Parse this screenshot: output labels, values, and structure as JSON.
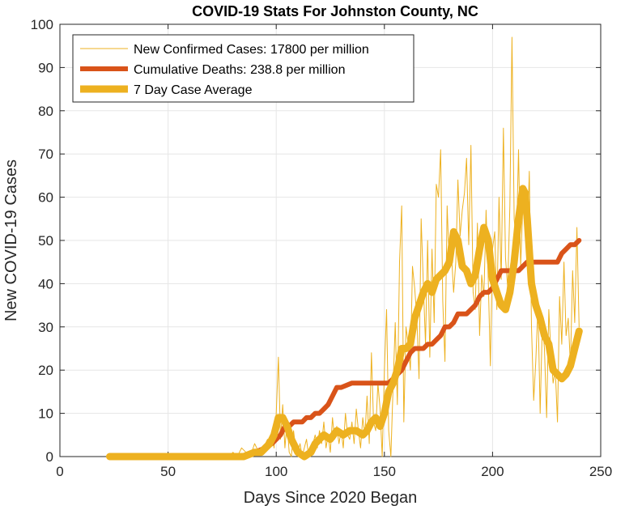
{
  "chart_data": {
    "type": "line",
    "title": "COVID-19 Stats For Johnston County, NC",
    "xlabel": "Days Since 2020 Began",
    "ylabel": "New COVID-19 Cases",
    "xlim": [
      0,
      250
    ],
    "ylim": [
      0,
      100
    ],
    "xticks": [
      0,
      50,
      100,
      150,
      200,
      250
    ],
    "yticks": [
      0,
      10,
      20,
      30,
      40,
      50,
      60,
      70,
      80,
      90,
      100
    ],
    "xtick_labels": [
      "0",
      "50",
      "100",
      "150",
      "200",
      "250"
    ],
    "ytick_labels": [
      "0",
      "10",
      "20",
      "30",
      "40",
      "50",
      "60",
      "70",
      "80",
      "90",
      "100"
    ],
    "grid": true,
    "legend_position": "top-left",
    "series": [
      {
        "name": "New Confirmed Cases: 17800 per million",
        "color": "#EDB120",
        "style": "thin",
        "x": [
          23,
          30,
          40,
          50,
          60,
          70,
          78,
          80,
          82,
          84,
          86,
          88,
          90,
          92,
          94,
          96,
          97,
          98,
          99,
          100,
          101,
          102,
          103,
          104,
          105,
          106,
          107,
          108,
          109,
          110,
          111,
          112,
          113,
          114,
          115,
          116,
          117,
          118,
          119,
          120,
          121,
          122,
          123,
          124,
          125,
          126,
          127,
          128,
          129,
          130,
          131,
          132,
          133,
          134,
          135,
          136,
          137,
          138,
          139,
          140,
          141,
          142,
          143,
          144,
          145,
          146,
          147,
          148,
          149,
          150,
          151,
          152,
          153,
          154,
          155,
          156,
          157,
          158,
          159,
          160,
          161,
          162,
          163,
          164,
          165,
          166,
          167,
          168,
          169,
          170,
          171,
          172,
          173,
          174,
          175,
          176,
          177,
          178,
          179,
          180,
          181,
          182,
          183,
          184,
          185,
          186,
          187,
          188,
          189,
          190,
          191,
          192,
          193,
          194,
          195,
          196,
          197,
          198,
          199,
          200,
          201,
          202,
          203,
          204,
          205,
          206,
          207,
          208,
          209,
          210,
          211,
          212,
          213,
          214,
          215,
          216,
          217,
          218,
          219,
          220,
          221,
          222,
          223,
          224,
          225,
          226,
          227,
          228,
          229,
          230,
          231,
          232,
          233,
          234,
          235,
          236,
          237,
          238,
          239,
          240
        ],
        "y": [
          0,
          0,
          0,
          0,
          0,
          0,
          0,
          1,
          0,
          2,
          1,
          0,
          3,
          1,
          2,
          4,
          3,
          6,
          2,
          10,
          23,
          4,
          12,
          2,
          8,
          1,
          0,
          6,
          2,
          1,
          3,
          0,
          2,
          4,
          0,
          1,
          3,
          5,
          2,
          6,
          3,
          8,
          2,
          5,
          1,
          9,
          4,
          7,
          3,
          6,
          2,
          10,
          5,
          4,
          8,
          3,
          11,
          6,
          2,
          9,
          5,
          14,
          3,
          24,
          8,
          6,
          17,
          11,
          0,
          20,
          34,
          6,
          0,
          16,
          31,
          12,
          45,
          58,
          8,
          30,
          26,
          20,
          44,
          39,
          32,
          18,
          55,
          40,
          26,
          50,
          23,
          48,
          31,
          63,
          60,
          71,
          36,
          22,
          58,
          44,
          47,
          38,
          45,
          64,
          51,
          57,
          61,
          69,
          49,
          72,
          38,
          34,
          54,
          28,
          42,
          37,
          57,
          41,
          21,
          48,
          52,
          34,
          60,
          41,
          76,
          46,
          39,
          58,
          97,
          55,
          49,
          71,
          44,
          58,
          53,
          49,
          66,
          30,
          13,
          22,
          35,
          10,
          31,
          25,
          9,
          34,
          24,
          17,
          20,
          8,
          37,
          26,
          45,
          28,
          32,
          21,
          43,
          31,
          53,
          30
        ]
      },
      {
        "name": "Cumulative Deaths: 238.8 per million",
        "color": "#D95319",
        "style": "thick",
        "x": [
          23,
          85,
          90,
          95,
          98,
          100,
          102,
          104,
          106,
          108,
          110,
          112,
          114,
          116,
          118,
          120,
          122,
          124,
          126,
          128,
          130,
          135,
          140,
          145,
          150,
          152,
          154,
          156,
          158,
          160,
          162,
          164,
          166,
          168,
          170,
          172,
          174,
          176,
          178,
          180,
          182,
          184,
          186,
          188,
          190,
          192,
          194,
          196,
          198,
          200,
          202,
          204,
          206,
          208,
          210,
          212,
          214,
          216,
          218,
          220,
          222,
          224,
          226,
          228,
          230,
          232,
          234,
          236,
          238,
          240
        ],
        "y": [
          0,
          0,
          1,
          2,
          3,
          4,
          5,
          7,
          7,
          8,
          8,
          8,
          9,
          9,
          10,
          10,
          11,
          12,
          14,
          16,
          16,
          17,
          17,
          17,
          17,
          17,
          18,
          19,
          20,
          22,
          24,
          25,
          25,
          25,
          26,
          26,
          27,
          28,
          30,
          30,
          31,
          33,
          33,
          33,
          34,
          35,
          37,
          38,
          38,
          39,
          41,
          43,
          43,
          43,
          43,
          43,
          44,
          45,
          45,
          45,
          45,
          45,
          45,
          45,
          45,
          47,
          48,
          49,
          49,
          50
        ]
      },
      {
        "name": "7 Day Case Average",
        "color": "#EDB120",
        "style": "thickest",
        "x": [
          23,
          40,
          60,
          75,
          80,
          85,
          90,
          93,
          95,
          97,
          99,
          101,
          103,
          105,
          107,
          110,
          113,
          116,
          118,
          120,
          122,
          125,
          128,
          131,
          134,
          137,
          140,
          142,
          144,
          146,
          148,
          150,
          152,
          154,
          156,
          158,
          160,
          162,
          164,
          166,
          168,
          170,
          172,
          174,
          176,
          178,
          180,
          182,
          184,
          186,
          188,
          190,
          192,
          194,
          196,
          198,
          200,
          202,
          204,
          206,
          208,
          210,
          212,
          214,
          215,
          216,
          218,
          220,
          222,
          224,
          226,
          228,
          230,
          232,
          234,
          236,
          238,
          240
        ],
        "y": [
          0,
          0,
          0,
          0,
          0,
          0,
          1,
          1,
          2,
          3,
          5,
          9,
          9,
          7,
          4,
          1,
          0,
          1,
          3,
          4,
          5,
          4,
          6,
          5,
          6,
          6,
          5,
          6,
          8,
          9,
          7,
          10,
          15,
          17,
          20,
          25,
          25,
          26,
          32,
          35,
          38,
          40,
          38,
          41,
          42,
          43,
          45,
          52,
          50,
          44,
          43,
          40,
          42,
          48,
          53,
          50,
          41,
          38,
          35,
          34,
          38,
          45,
          55,
          62,
          61,
          55,
          40,
          35,
          32,
          28,
          26,
          20,
          19,
          18,
          19,
          21,
          25,
          29
        ]
      }
    ]
  }
}
